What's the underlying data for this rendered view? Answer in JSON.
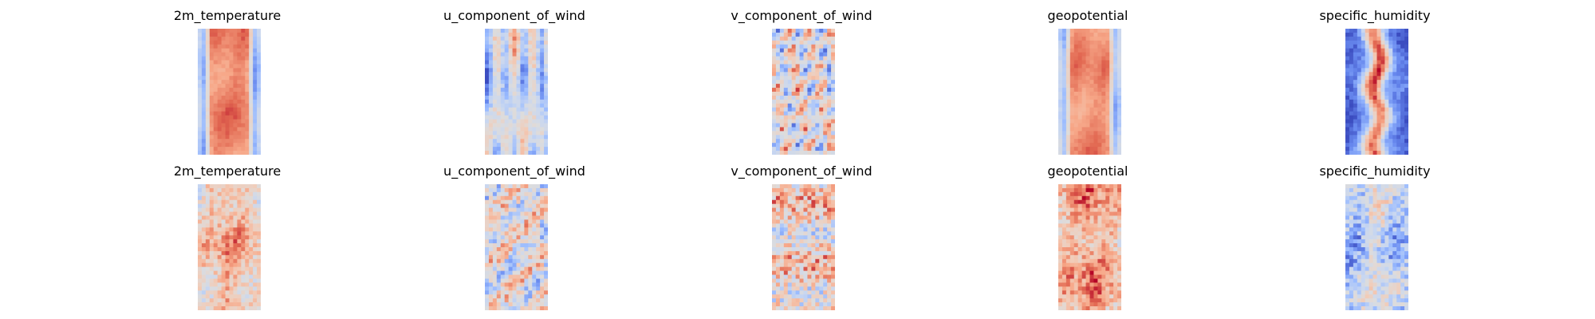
{
  "figure": {
    "background": "#ffffff",
    "colormap": "coolwarm",
    "colormap_stops": [
      "#3b4cc0",
      "#6788ee",
      "#9abbff",
      "#c9d7f0",
      "#dddcdc",
      "#f2cbb7",
      "#f7a889",
      "#e26952",
      "#b40426"
    ]
  },
  "chart_data": [
    {
      "type": "heatmap",
      "title": "2m_temperature",
      "row": 0,
      "col": 0,
      "grid": false,
      "axes": "off",
      "pattern": "warm-core-band",
      "core_level": 0.82,
      "edge_level": 0.15
    },
    {
      "type": "heatmap",
      "title": "u_component_of_wind",
      "row": 0,
      "col": 1,
      "grid": false,
      "axes": "off",
      "pattern": "streaky-neutral",
      "core_level": 0.45,
      "edge_level": 0.3
    },
    {
      "type": "heatmap",
      "title": "v_component_of_wind",
      "row": 0,
      "col": 2,
      "grid": false,
      "axes": "off",
      "pattern": "turbulent-mixed",
      "core_level": 0.5,
      "edge_level": 0.45
    },
    {
      "type": "heatmap",
      "title": "geopotential",
      "row": 0,
      "col": 3,
      "grid": false,
      "axes": "off",
      "pattern": "warm-core-band",
      "core_level": 0.8,
      "edge_level": 0.2
    },
    {
      "type": "heatmap",
      "title": "specific_humidity",
      "row": 0,
      "col": 4,
      "grid": false,
      "axes": "off",
      "pattern": "narrow-warm-core-cold-edges",
      "core_level": 0.75,
      "edge_level": 0.05
    },
    {
      "type": "heatmap",
      "title": "2m_temperature",
      "row": 1,
      "col": 0,
      "grid": false,
      "axes": "off",
      "pattern": "noisy-warm",
      "core_level": 0.72,
      "edge_level": 0.4
    },
    {
      "type": "heatmap",
      "title": "u_component_of_wind",
      "row": 1,
      "col": 1,
      "grid": false,
      "axes": "off",
      "pattern": "noisy-neutral",
      "core_level": 0.5,
      "edge_level": 0.4
    },
    {
      "type": "heatmap",
      "title": "v_component_of_wind",
      "row": 1,
      "col": 2,
      "grid": false,
      "axes": "off",
      "pattern": "noisy-warm-mixed",
      "core_level": 0.58,
      "edge_level": 0.5
    },
    {
      "type": "heatmap",
      "title": "geopotential",
      "row": 1,
      "col": 3,
      "grid": false,
      "axes": "off",
      "pattern": "noisy-warm",
      "core_level": 0.78,
      "edge_level": 0.55
    },
    {
      "type": "heatmap",
      "title": "specific_humidity",
      "row": 1,
      "col": 4,
      "grid": false,
      "axes": "off",
      "pattern": "noisy-cool",
      "core_level": 0.45,
      "edge_level": 0.2
    }
  ]
}
